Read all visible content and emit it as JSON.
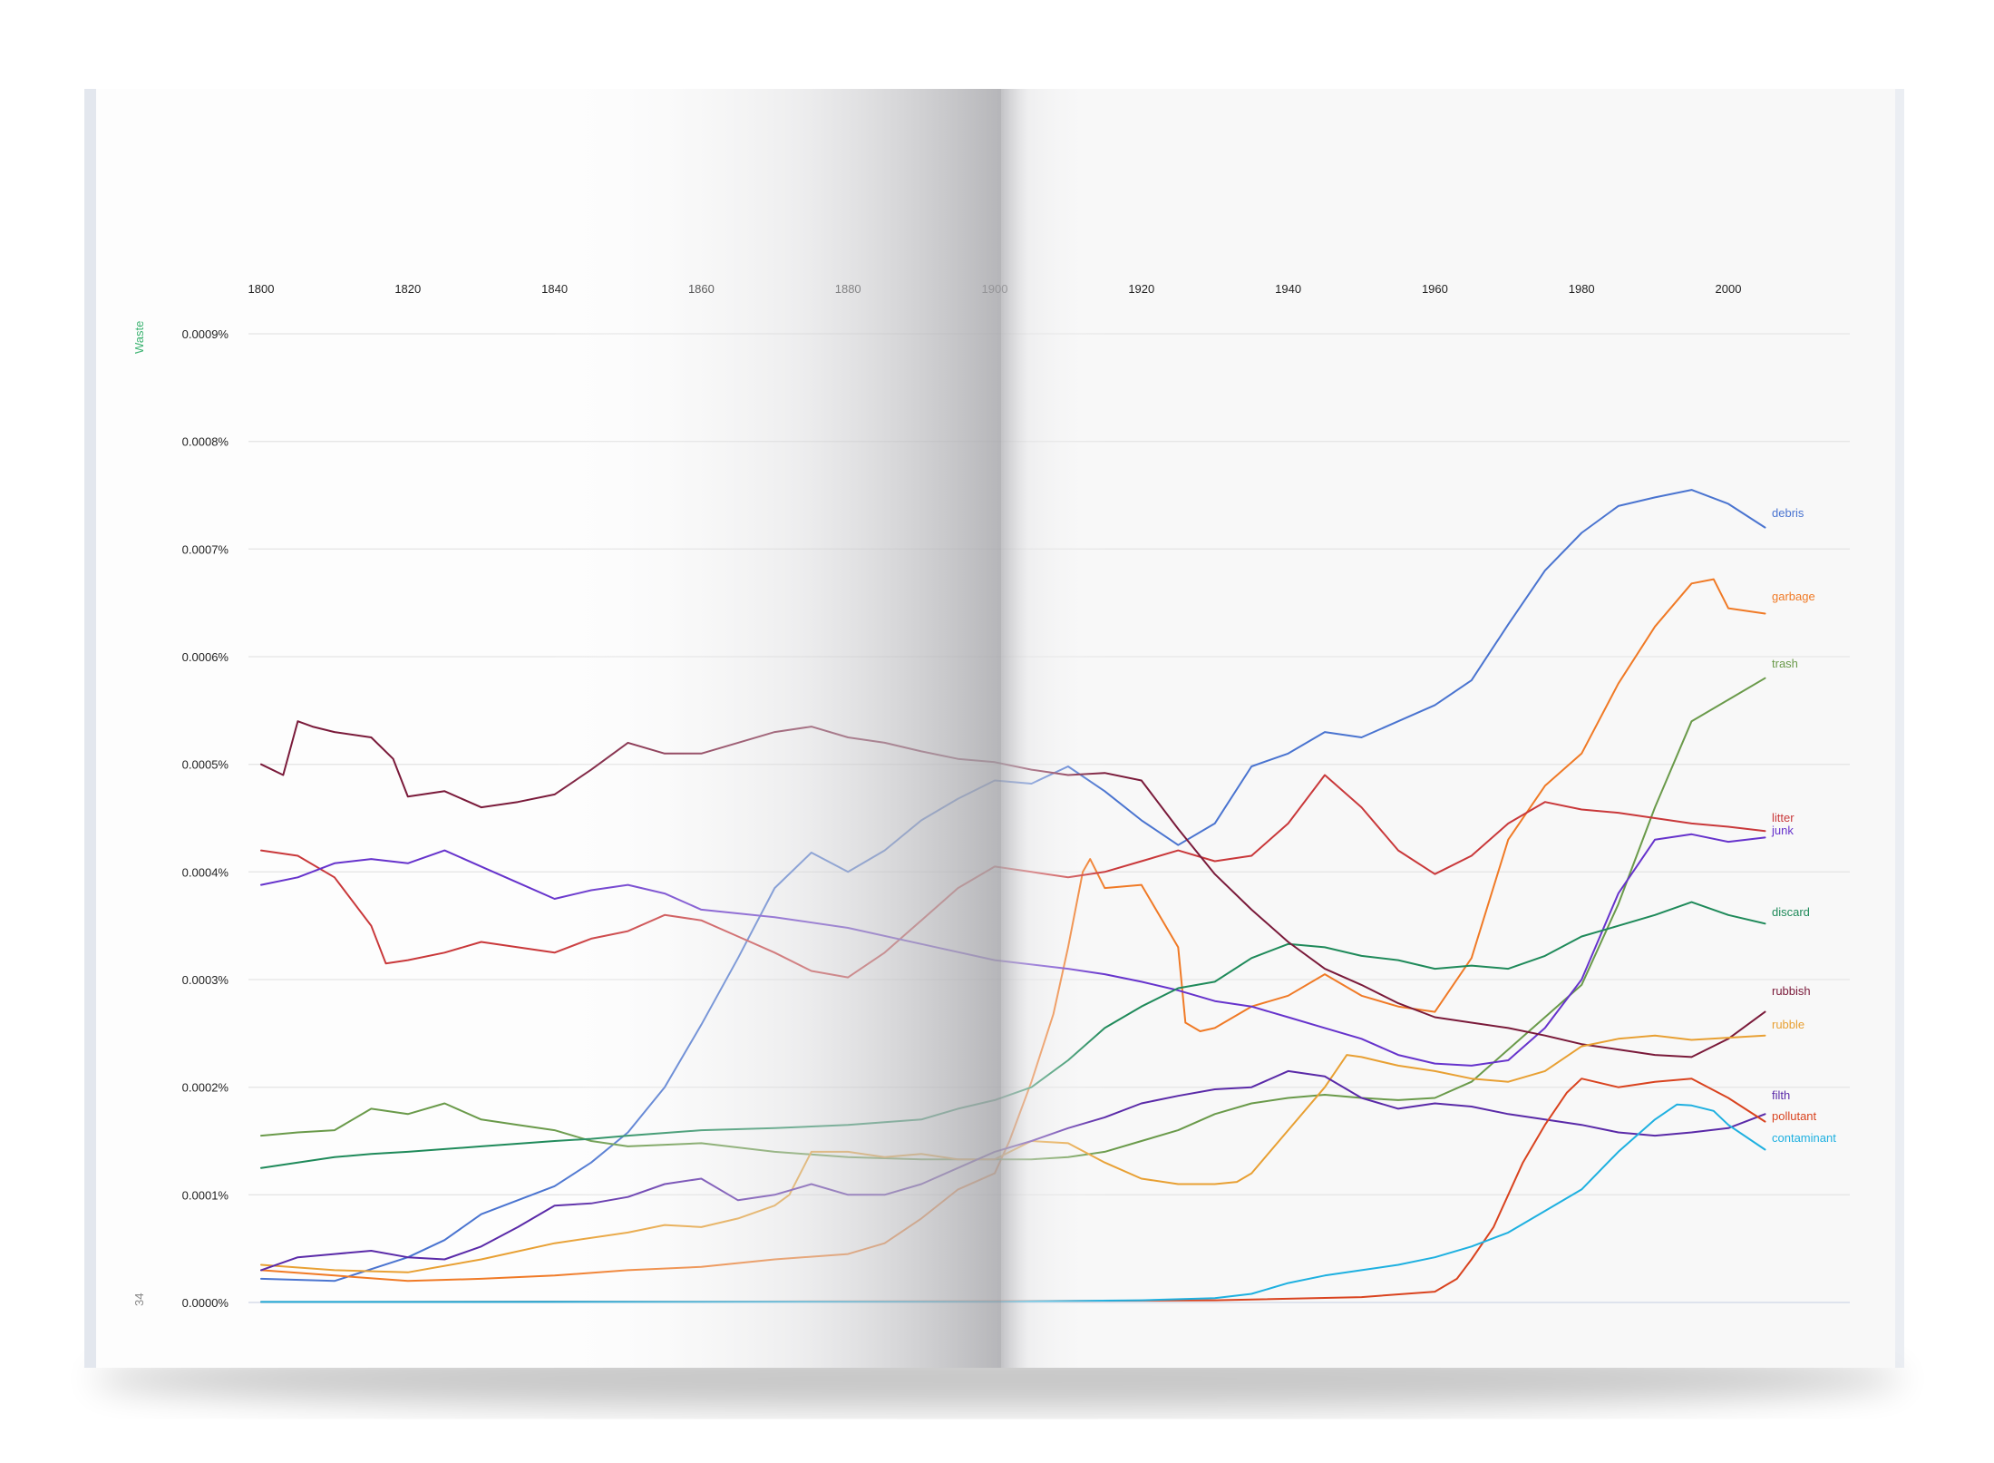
{
  "page": {
    "section_label": "Waste",
    "page_number": "34",
    "section_color": "#3cb371"
  },
  "chart_data": {
    "type": "line",
    "title": "",
    "xlabel": "",
    "ylabel": "Waste",
    "xlim": [
      1800,
      2008
    ],
    "ylim": [
      0,
      0.0009
    ],
    "x_ticks": [
      1800,
      1820,
      1840,
      1860,
      1880,
      1900,
      1920,
      1940,
      1960,
      1980,
      2000
    ],
    "y_ticks": [
      {
        "value": 0.0,
        "label": "0.0000%"
      },
      {
        "value": 0.0001,
        "label": "0.0001%"
      },
      {
        "value": 0.0002,
        "label": "0.0002%"
      },
      {
        "value": 0.0003,
        "label": "0.0003%"
      },
      {
        "value": 0.0004,
        "label": "0.0004%"
      },
      {
        "value": 0.0005,
        "label": "0.0005%"
      },
      {
        "value": 0.0006,
        "label": "0.0006%"
      },
      {
        "value": 0.0007,
        "label": "0.0007%"
      },
      {
        "value": 0.0008,
        "label": "0.0008%"
      },
      {
        "value": 0.0009,
        "label": "0.0009%"
      }
    ],
    "grid": true,
    "legend": "labels at line ends, right",
    "series": [
      {
        "name": "debris",
        "color": "#4a74d0",
        "x": [
          1800,
          1810,
          1820,
          1825,
          1830,
          1840,
          1845,
          1850,
          1855,
          1860,
          1865,
          1870,
          1875,
          1880,
          1885,
          1890,
          1895,
          1900,
          1905,
          1910,
          1915,
          1920,
          1925,
          1930,
          1935,
          1940,
          1945,
          1950,
          1955,
          1960,
          1965,
          1970,
          1975,
          1980,
          1985,
          1990,
          1995,
          2000,
          2005
        ],
        "y": [
          2.2e-05,
          2e-05,
          4.2e-05,
          5.8e-05,
          8.2e-05,
          0.000108,
          0.00013,
          0.000158,
          0.0002,
          0.000258,
          0.00032,
          0.000385,
          0.000418,
          0.0004,
          0.00042,
          0.000448,
          0.000468,
          0.000485,
          0.000482,
          0.000498,
          0.000475,
          0.000448,
          0.000425,
          0.000445,
          0.000498,
          0.00051,
          0.00053,
          0.000525,
          0.00054,
          0.000555,
          0.000578,
          0.00063,
          0.00068,
          0.000715,
          0.00074,
          0.000748,
          0.000755,
          0.000742,
          0.00072
        ]
      },
      {
        "name": "garbage",
        "color": "#f07a26",
        "x": [
          1800,
          1810,
          1820,
          1830,
          1840,
          1850,
          1860,
          1870,
          1880,
          1885,
          1890,
          1895,
          1900,
          1902,
          1905,
          1908,
          1910,
          1912,
          1913,
          1915,
          1920,
          1925,
          1926,
          1928,
          1930,
          1935,
          1940,
          1945,
          1950,
          1955,
          1960,
          1965,
          1970,
          1975,
          1980,
          1985,
          1990,
          1995,
          1998,
          2000,
          2005
        ],
        "y": [
          3e-05,
          2.5e-05,
          2e-05,
          2.2e-05,
          2.5e-05,
          3e-05,
          3.3e-05,
          4e-05,
          4.5e-05,
          5.5e-05,
          7.8e-05,
          0.000105,
          0.00012,
          0.00015,
          0.000205,
          0.000268,
          0.00033,
          0.0004,
          0.000412,
          0.000385,
          0.000388,
          0.00033,
          0.00026,
          0.000252,
          0.000255,
          0.000275,
          0.000285,
          0.000305,
          0.000285,
          0.000275,
          0.00027,
          0.00032,
          0.00043,
          0.00048,
          0.00051,
          0.000575,
          0.000628,
          0.000668,
          0.000672,
          0.000645,
          0.00064
        ]
      },
      {
        "name": "trash",
        "color": "#6a9a4a",
        "x": [
          1800,
          1805,
          1810,
          1815,
          1820,
          1825,
          1830,
          1835,
          1840,
          1845,
          1850,
          1860,
          1870,
          1880,
          1890,
          1895,
          1900,
          1905,
          1910,
          1915,
          1920,
          1925,
          1930,
          1935,
          1940,
          1945,
          1950,
          1955,
          1960,
          1965,
          1970,
          1975,
          1980,
          1985,
          1990,
          1995,
          2000,
          2005
        ],
        "y": [
          0.000155,
          0.000158,
          0.00016,
          0.00018,
          0.000175,
          0.000185,
          0.00017,
          0.000165,
          0.00016,
          0.00015,
          0.000145,
          0.000148,
          0.00014,
          0.000135,
          0.000133,
          0.000133,
          0.000133,
          0.000133,
          0.000135,
          0.00014,
          0.00015,
          0.00016,
          0.000175,
          0.000185,
          0.00019,
          0.000193,
          0.00019,
          0.000188,
          0.00019,
          0.000205,
          0.000235,
          0.000265,
          0.000295,
          0.00037,
          0.00046,
          0.00054,
          0.00056,
          0.00058
        ]
      },
      {
        "name": "litter",
        "color": "#c9383a",
        "x": [
          1800,
          1805,
          1810,
          1815,
          1817,
          1820,
          1825,
          1830,
          1835,
          1840,
          1845,
          1850,
          1855,
          1860,
          1865,
          1870,
          1875,
          1880,
          1885,
          1890,
          1895,
          1900,
          1905,
          1910,
          1915,
          1920,
          1925,
          1930,
          1935,
          1940,
          1945,
          1950,
          1955,
          1960,
          1965,
          1970,
          1975,
          1980,
          1985,
          1990,
          1995,
          2000,
          2005
        ],
        "y": [
          0.00042,
          0.000415,
          0.000395,
          0.00035,
          0.000315,
          0.000318,
          0.000325,
          0.000335,
          0.00033,
          0.000325,
          0.000338,
          0.000345,
          0.00036,
          0.000355,
          0.00034,
          0.000325,
          0.000308,
          0.000302,
          0.000325,
          0.000355,
          0.000385,
          0.000405,
          0.0004,
          0.000395,
          0.0004,
          0.00041,
          0.00042,
          0.00041,
          0.000415,
          0.000445,
          0.00049,
          0.00046,
          0.00042,
          0.000398,
          0.000415,
          0.000445,
          0.000465,
          0.000458,
          0.000455,
          0.00045,
          0.000445,
          0.000442,
          0.000438
        ]
      },
      {
        "name": "junk",
        "color": "#6633cc",
        "x": [
          1800,
          1805,
          1810,
          1815,
          1820,
          1825,
          1830,
          1835,
          1840,
          1845,
          1850,
          1855,
          1860,
          1870,
          1880,
          1890,
          1900,
          1910,
          1915,
          1920,
          1925,
          1930,
          1935,
          1940,
          1945,
          1950,
          1955,
          1960,
          1965,
          1970,
          1975,
          1980,
          1985,
          1990,
          1995,
          2000,
          2005
        ],
        "y": [
          0.000388,
          0.000395,
          0.000408,
          0.000412,
          0.000408,
          0.00042,
          0.000405,
          0.00039,
          0.000375,
          0.000383,
          0.000388,
          0.00038,
          0.000365,
          0.000358,
          0.000348,
          0.000333,
          0.000318,
          0.00031,
          0.000305,
          0.000298,
          0.00029,
          0.00028,
          0.000275,
          0.000265,
          0.000255,
          0.000245,
          0.00023,
          0.000222,
          0.00022,
          0.000225,
          0.000255,
          0.0003,
          0.00038,
          0.00043,
          0.000435,
          0.000428,
          0.000432
        ]
      },
      {
        "name": "discard",
        "color": "#1f8a5a",
        "x": [
          1800,
          1805,
          1810,
          1815,
          1820,
          1830,
          1840,
          1845,
          1850,
          1860,
          1870,
          1880,
          1890,
          1895,
          1900,
          1905,
          1910,
          1915,
          1920,
          1925,
          1930,
          1935,
          1940,
          1945,
          1950,
          1955,
          1960,
          1965,
          1970,
          1975,
          1980,
          1985,
          1990,
          1995,
          2000,
          2005
        ],
        "y": [
          0.000125,
          0.00013,
          0.000135,
          0.000138,
          0.00014,
          0.000145,
          0.00015,
          0.000152,
          0.000155,
          0.00016,
          0.000162,
          0.000165,
          0.00017,
          0.00018,
          0.000188,
          0.0002,
          0.000225,
          0.000255,
          0.000275,
          0.000292,
          0.000298,
          0.00032,
          0.000333,
          0.00033,
          0.000322,
          0.000318,
          0.00031,
          0.000313,
          0.00031,
          0.000322,
          0.00034,
          0.00035,
          0.00036,
          0.000372,
          0.00036,
          0.000352
        ]
      },
      {
        "name": "rubbish",
        "color": "#7a1a3a",
        "x": [
          1800,
          1803,
          1805,
          1807,
          1810,
          1815,
          1818,
          1820,
          1825,
          1830,
          1835,
          1840,
          1845,
          1850,
          1855,
          1860,
          1865,
          1870,
          1875,
          1880,
          1885,
          1890,
          1895,
          1900,
          1905,
          1910,
          1915,
          1920,
          1925,
          1930,
          1935,
          1940,
          1945,
          1950,
          1955,
          1960,
          1965,
          1970,
          1975,
          1980,
          1985,
          1990,
          1995,
          2000,
          2005
        ],
        "y": [
          0.0005,
          0.00049,
          0.00054,
          0.000535,
          0.00053,
          0.000525,
          0.000505,
          0.00047,
          0.000475,
          0.00046,
          0.000465,
          0.000472,
          0.000495,
          0.00052,
          0.00051,
          0.00051,
          0.00052,
          0.00053,
          0.000535,
          0.000525,
          0.00052,
          0.000512,
          0.000505,
          0.000502,
          0.000495,
          0.00049,
          0.000492,
          0.000485,
          0.00044,
          0.000398,
          0.000365,
          0.000335,
          0.00031,
          0.000295,
          0.000278,
          0.000265,
          0.00026,
          0.000255,
          0.000248,
          0.00024,
          0.000235,
          0.00023,
          0.000228,
          0.000245,
          0.00027
        ]
      },
      {
        "name": "rubble",
        "color": "#e8a033",
        "x": [
          1800,
          1810,
          1820,
          1830,
          1840,
          1850,
          1855,
          1860,
          1865,
          1870,
          1872,
          1875,
          1880,
          1885,
          1890,
          1895,
          1900,
          1905,
          1910,
          1915,
          1920,
          1925,
          1930,
          1933,
          1935,
          1940,
          1945,
          1948,
          1950,
          1955,
          1960,
          1965,
          1970,
          1975,
          1980,
          1985,
          1990,
          1995,
          2000,
          2005
        ],
        "y": [
          3.5e-05,
          3e-05,
          2.8e-05,
          4e-05,
          5.5e-05,
          6.5e-05,
          7.2e-05,
          7e-05,
          7.8e-05,
          9e-05,
          0.0001,
          0.00014,
          0.00014,
          0.000135,
          0.000138,
          0.000133,
          0.000133,
          0.00015,
          0.000148,
          0.00013,
          0.000115,
          0.00011,
          0.00011,
          0.000112,
          0.00012,
          0.00016,
          0.0002,
          0.00023,
          0.000228,
          0.00022,
          0.000215,
          0.000208,
          0.000205,
          0.000215,
          0.000238,
          0.000245,
          0.000248,
          0.000244,
          0.000246,
          0.000248
        ]
      },
      {
        "name": "filth",
        "color": "#5a2aa8",
        "x": [
          1800,
          1805,
          1810,
          1815,
          1820,
          1825,
          1830,
          1835,
          1840,
          1845,
          1850,
          1855,
          1860,
          1865,
          1870,
          1875,
          1880,
          1885,
          1890,
          1895,
          1900,
          1905,
          1910,
          1915,
          1920,
          1925,
          1930,
          1935,
          1940,
          1945,
          1950,
          1955,
          1960,
          1965,
          1970,
          1975,
          1980,
          1985,
          1990,
          1995,
          2000,
          2005
        ],
        "y": [
          3e-05,
          4.2e-05,
          4.5e-05,
          4.8e-05,
          4.2e-05,
          4e-05,
          5.2e-05,
          7e-05,
          9e-05,
          9.2e-05,
          9.8e-05,
          0.00011,
          0.000115,
          9.5e-05,
          0.0001,
          0.00011,
          0.0001,
          0.0001,
          0.00011,
          0.000125,
          0.00014,
          0.00015,
          0.000162,
          0.000172,
          0.000185,
          0.000192,
          0.000198,
          0.0002,
          0.000215,
          0.00021,
          0.00019,
          0.00018,
          0.000185,
          0.000182,
          0.000175,
          0.00017,
          0.000165,
          0.000158,
          0.000155,
          0.000158,
          0.000162,
          0.000175
        ]
      },
      {
        "name": "pollutant",
        "color": "#d9431f",
        "x": [
          1800,
          1860,
          1900,
          1930,
          1950,
          1960,
          1963,
          1965,
          1968,
          1970,
          1972,
          1975,
          1978,
          1980,
          1985,
          1990,
          1995,
          2000,
          2005
        ],
        "y": [
          5e-07,
          8e-07,
          1.2e-06,
          2e-06,
          5e-06,
          1e-05,
          2.2e-05,
          4e-05,
          7e-05,
          0.0001,
          0.00013,
          0.000165,
          0.000195,
          0.000208,
          0.0002,
          0.000205,
          0.000208,
          0.00019,
          0.000168
        ]
      },
      {
        "name": "contaminant",
        "color": "#1eb0e0",
        "x": [
          1800,
          1900,
          1920,
          1930,
          1935,
          1940,
          1945,
          1950,
          1955,
          1960,
          1965,
          1970,
          1975,
          1980,
          1985,
          1990,
          1993,
          1995,
          1998,
          2000,
          2005
        ],
        "y": [
          5e-07,
          8e-07,
          2e-06,
          4e-06,
          8e-06,
          1.8e-05,
          2.5e-05,
          3e-05,
          3.5e-05,
          4.2e-05,
          5.2e-05,
          6.5e-05,
          8.5e-05,
          0.000105,
          0.00014,
          0.00017,
          0.000184,
          0.000183,
          0.000178,
          0.000165,
          0.000142
        ]
      }
    ]
  }
}
